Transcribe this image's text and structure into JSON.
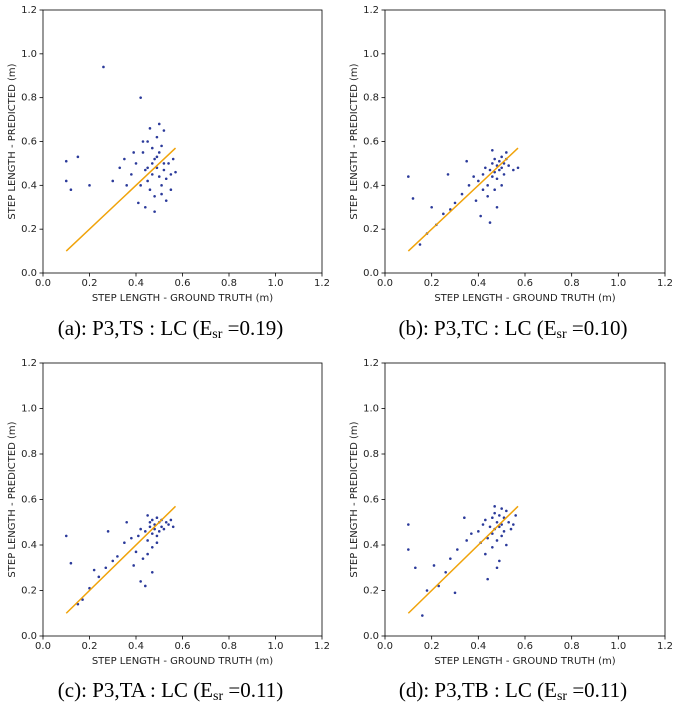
{
  "chart_data": [
    {
      "type": "scatter",
      "xlabel": "STEP LENGTH - GROUND TRUTH (m)",
      "ylabel": "STEP LENGTH - PREDICTED (m)",
      "caption": {
        "prefix": "(a): P3,TS : LC (E",
        "sub": "sr",
        "suffix": " =0.19)"
      },
      "xlim": [
        0,
        1.2
      ],
      "ylim": [
        0,
        1.2
      ],
      "xticks": [
        {
          "value": 0,
          "label": "0.0"
        },
        0.2,
        0.4,
        0.6,
        0.8,
        {
          "value": 1,
          "label": "1.0"
        },
        1.2
      ],
      "yticks": [
        {
          "value": 0,
          "label": "0.0"
        },
        0.2,
        0.4,
        0.6,
        0.8,
        {
          "value": 1,
          "label": "1.0"
        },
        1.2
      ],
      "points": {
        "color": "#2b3a9a",
        "x": [
          0.38,
          0.4,
          0.42,
          0.43,
          0.44,
          0.45,
          0.45,
          0.46,
          0.47,
          0.47,
          0.48,
          0.48,
          0.49,
          0.49,
          0.5,
          0.5,
          0.51,
          0.51,
          0.52,
          0.52,
          0.53,
          0.54,
          0.55,
          0.56,
          0.41,
          0.44,
          0.46,
          0.48,
          0.5,
          0.53,
          0.36,
          0.39,
          0.43,
          0.47,
          0.51,
          0.55,
          0.3,
          0.33,
          0.35,
          0.26,
          0.42,
          0.1,
          0.1,
          0.15,
          0.2,
          0.12,
          0.45,
          0.49,
          0.52,
          0.57
        ],
        "y": [
          0.45,
          0.5,
          0.4,
          0.55,
          0.47,
          0.42,
          0.6,
          0.38,
          0.5,
          0.45,
          0.52,
          0.35,
          0.48,
          0.62,
          0.44,
          0.55,
          0.4,
          0.58,
          0.47,
          0.65,
          0.43,
          0.5,
          0.38,
          0.52,
          0.32,
          0.3,
          0.66,
          0.28,
          0.68,
          0.33,
          0.4,
          0.55,
          0.6,
          0.57,
          0.36,
          0.45,
          0.42,
          0.48,
          0.52,
          0.94,
          0.8,
          0.51,
          0.42,
          0.53,
          0.4,
          0.38,
          0.48,
          0.53,
          0.5,
          0.46
        ]
      },
      "line": {
        "color": "#f0a30a",
        "x": [
          0.1,
          0.57
        ],
        "y": [
          0.1,
          0.57
        ]
      }
    },
    {
      "type": "scatter",
      "xlabel": "STEP LENGTH - GROUND TRUTH (m)",
      "ylabel": "STEP LENGTH - PREDICTED (m)",
      "caption": {
        "prefix": "(b): P3,TC : LC (E",
        "sub": "sr",
        "suffix": " =0.10)"
      },
      "xlim": [
        0,
        1.2
      ],
      "ylim": [
        0,
        1.2
      ],
      "xticks": [
        {
          "value": 0,
          "label": "0.0"
        },
        0.2,
        0.4,
        0.6,
        0.8,
        {
          "value": 1,
          "label": "1.0"
        },
        1.2
      ],
      "yticks": [
        {
          "value": 0,
          "label": "0.0"
        },
        0.2,
        0.4,
        0.6,
        0.8,
        {
          "value": 1,
          "label": "1.0"
        },
        1.2
      ],
      "points": {
        "color": "#2b3a9a",
        "x": [
          0.4,
          0.42,
          0.43,
          0.44,
          0.45,
          0.46,
          0.46,
          0.47,
          0.47,
          0.48,
          0.48,
          0.49,
          0.49,
          0.5,
          0.5,
          0.51,
          0.51,
          0.52,
          0.53,
          0.55,
          0.44,
          0.47,
          0.5,
          0.52,
          0.45,
          0.48,
          0.38,
          0.36,
          0.33,
          0.3,
          0.28,
          0.25,
          0.22,
          0.18,
          0.15,
          0.12,
          0.1,
          0.2,
          0.27,
          0.35,
          0.42,
          0.46,
          0.57,
          0.39,
          0.41
        ],
        "y": [
          0.42,
          0.45,
          0.48,
          0.4,
          0.47,
          0.5,
          0.44,
          0.52,
          0.46,
          0.49,
          0.43,
          0.51,
          0.47,
          0.53,
          0.48,
          0.5,
          0.45,
          0.52,
          0.49,
          0.47,
          0.35,
          0.38,
          0.4,
          0.55,
          0.23,
          0.3,
          0.44,
          0.4,
          0.36,
          0.32,
          0.29,
          0.27,
          0.22,
          0.18,
          0.13,
          0.34,
          0.44,
          0.3,
          0.45,
          0.51,
          0.38,
          0.56,
          0.48,
          0.33,
          0.26
        ]
      },
      "line": {
        "color": "#f0a30a",
        "x": [
          0.1,
          0.57
        ],
        "y": [
          0.1,
          0.57
        ]
      }
    },
    {
      "type": "scatter",
      "xlabel": "STEP LENGTH - GROUND TRUTH (m)",
      "ylabel": "STEP LENGTH - PREDICTED (m)",
      "caption": {
        "prefix": "(c): P3,TA : LC (E",
        "sub": "sr",
        "suffix": " =0.11)"
      },
      "xlim": [
        0,
        1.2
      ],
      "ylim": [
        0,
        1.2
      ],
      "xticks": [
        {
          "value": 0,
          "label": "0.0"
        },
        0.2,
        0.4,
        0.6,
        0.8,
        {
          "value": 1,
          "label": "1.0"
        },
        1.2
      ],
      "yticks": [
        {
          "value": 0,
          "label": "0.0"
        },
        0.2,
        0.4,
        0.6,
        0.8,
        {
          "value": 1,
          "label": "1.0"
        },
        1.2
      ],
      "points": {
        "color": "#2b3a9a",
        "x": [
          0.41,
          0.42,
          0.44,
          0.45,
          0.46,
          0.46,
          0.47,
          0.47,
          0.48,
          0.48,
          0.49,
          0.49,
          0.5,
          0.5,
          0.51,
          0.51,
          0.52,
          0.53,
          0.54,
          0.56,
          0.43,
          0.45,
          0.47,
          0.49,
          0.44,
          0.47,
          0.38,
          0.35,
          0.32,
          0.3,
          0.27,
          0.24,
          0.2,
          0.17,
          0.15,
          0.12,
          0.1,
          0.22,
          0.28,
          0.36,
          0.4,
          0.45,
          0.55,
          0.39,
          0.42
        ],
        "y": [
          0.44,
          0.47,
          0.46,
          0.42,
          0.48,
          0.5,
          0.45,
          0.51,
          0.47,
          0.49,
          0.44,
          0.52,
          0.46,
          0.5,
          0.48,
          0.51,
          0.47,
          0.5,
          0.49,
          0.48,
          0.34,
          0.36,
          0.39,
          0.41,
          0.22,
          0.28,
          0.43,
          0.41,
          0.35,
          0.33,
          0.3,
          0.26,
          0.21,
          0.16,
          0.14,
          0.32,
          0.44,
          0.29,
          0.46,
          0.5,
          0.37,
          0.53,
          0.51,
          0.31,
          0.24
        ]
      },
      "line": {
        "color": "#f0a30a",
        "x": [
          0.1,
          0.57
        ],
        "y": [
          0.1,
          0.57
        ]
      }
    },
    {
      "type": "scatter",
      "xlabel": "STEP LENGTH - GROUND TRUTH (m)",
      "ylabel": "STEP LENGTH - PREDICTED (m)",
      "caption": {
        "prefix": "(d): P3,TB : LC (E",
        "sub": "sr",
        "suffix": " =0.11)"
      },
      "xlim": [
        0,
        1.2
      ],
      "ylim": [
        0,
        1.2
      ],
      "xticks": [
        {
          "value": 0,
          "label": "0.0"
        },
        0.2,
        0.4,
        0.6,
        0.8,
        {
          "value": 1,
          "label": "1.0"
        },
        1.2
      ],
      "yticks": [
        {
          "value": 0,
          "label": "0.0"
        },
        0.2,
        0.4,
        0.6,
        0.8,
        {
          "value": 1,
          "label": "1.0"
        },
        1.2
      ],
      "points": {
        "color": "#2b3a9a",
        "x": [
          0.4,
          0.42,
          0.43,
          0.44,
          0.45,
          0.46,
          0.46,
          0.47,
          0.47,
          0.48,
          0.48,
          0.49,
          0.49,
          0.5,
          0.5,
          0.51,
          0.51,
          0.52,
          0.53,
          0.55,
          0.43,
          0.46,
          0.49,
          0.52,
          0.44,
          0.48,
          0.37,
          0.35,
          0.31,
          0.28,
          0.26,
          0.23,
          0.18,
          0.16,
          0.13,
          0.1,
          0.1,
          0.21,
          0.3,
          0.34,
          0.41,
          0.47,
          0.56,
          0.5,
          0.54
        ],
        "y": [
          0.46,
          0.49,
          0.51,
          0.43,
          0.48,
          0.52,
          0.45,
          0.54,
          0.47,
          0.5,
          0.42,
          0.53,
          0.48,
          0.56,
          0.49,
          0.52,
          0.46,
          0.55,
          0.5,
          0.49,
          0.36,
          0.39,
          0.33,
          0.4,
          0.25,
          0.3,
          0.45,
          0.42,
          0.38,
          0.34,
          0.28,
          0.22,
          0.2,
          0.09,
          0.3,
          0.49,
          0.38,
          0.31,
          0.19,
          0.52,
          0.41,
          0.57,
          0.53,
          0.44,
          0.47
        ]
      },
      "line": {
        "color": "#f0a30a",
        "x": [
          0.1,
          0.57
        ],
        "y": [
          0.1,
          0.57
        ]
      }
    }
  ]
}
